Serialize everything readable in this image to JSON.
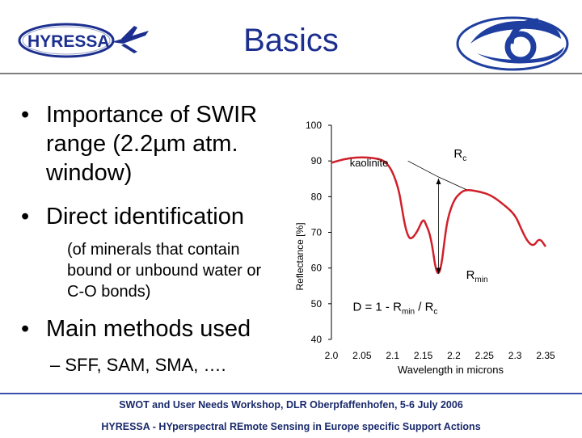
{
  "header": {
    "title": "Basics",
    "logo_text": "HYRESSA"
  },
  "bullets": {
    "b1_line1": "Importance of SWIR",
    "b1_line2": "range (2.2µm atm.",
    "b1_line3": "window)",
    "b2": "Direct identification",
    "b2_sub_line1": "(of minerals that contain",
    "b2_sub_line2": "bound or unbound water or",
    "b2_sub_line3": "C-O bonds)",
    "b3": "Main methods used",
    "b3_sub": "– SFF, SAM, SMA, …."
  },
  "chart_data": {
    "type": "line",
    "xlabel": "Wavelength in microns",
    "ylabel": "Reflectance [%]",
    "xlim": [
      2.0,
      2.35
    ],
    "ylim": [
      40,
      100
    ],
    "x_ticks": [
      "2.0",
      "2.05",
      "2.1",
      "2.15",
      "2.2",
      "2.25",
      "2.3",
      "2.35"
    ],
    "y_ticks": [
      "100",
      "90",
      "80",
      "70",
      "60",
      "50",
      "40"
    ],
    "series": [
      {
        "name": "kaolinite",
        "color": "#d0202a",
        "x": [
          2.0,
          2.02,
          2.04,
          2.06,
          2.08,
          2.09,
          2.1,
          2.11,
          2.115,
          2.12,
          2.125,
          2.13,
          2.14,
          2.15,
          2.155,
          2.16,
          2.165,
          2.17,
          2.175,
          2.18,
          2.185,
          2.19,
          2.2,
          2.21,
          2.22,
          2.24,
          2.26,
          2.28,
          2.3,
          2.31,
          2.32,
          2.33,
          2.34,
          2.35
        ],
        "y": [
          89.5,
          90.5,
          91,
          91,
          90.5,
          89.5,
          87,
          82,
          77,
          72,
          69,
          68,
          70,
          74,
          72,
          70,
          66,
          60,
          58,
          61,
          68,
          74,
          79,
          81,
          82,
          81.5,
          80.5,
          78,
          75,
          71,
          67.5,
          66,
          68.5,
          66
        ]
      }
    ],
    "annotations": {
      "kaolinite": "kaolinite",
      "rc_main": "R",
      "rc_sub": "c",
      "rmin_main": "R",
      "rmin_sub": "min",
      "formula_a": "D = 1 - R",
      "formula_sub1": "min",
      "formula_b": " / R",
      "formula_sub2": "c"
    }
  },
  "footer": {
    "line1": "SWOT and User Needs Workshop, DLR Oberpfaffenhofen,  5-6 July 2006",
    "line2": "HYRESSA - HYperspectral REmote Sensing in Europe specific Support Actions"
  }
}
